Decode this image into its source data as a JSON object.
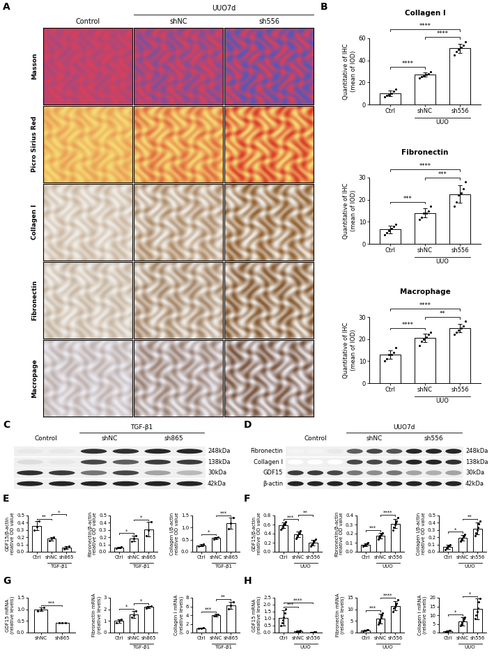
{
  "panels": [
    "A",
    "B",
    "C",
    "D",
    "E",
    "F",
    "G",
    "H"
  ],
  "histology": {
    "panel": "A",
    "columns": [
      "Control",
      "shNC",
      "sh556"
    ],
    "group": {
      "label": "UUO7d",
      "from": 1,
      "to": 2
    },
    "rows": [
      "Masson",
      "Picro Sirius Red",
      "Collagen I",
      "Fibronectin",
      "Macropage"
    ]
  },
  "blots": {
    "panels": [
      {
        "panel": "C",
        "lanes": 6,
        "columns": [
          {
            "label": "Control",
            "from": 0,
            "to": 1
          },
          {
            "label": "shNC",
            "from": 2,
            "to": 3
          },
          {
            "label": "sh865",
            "from": 4,
            "to": 5
          }
        ],
        "group": {
          "label": "TGF-β1",
          "from": 2,
          "to": 5
        },
        "kda": [
          "248kDa",
          "138kDa",
          "30kDa",
          "42kDa"
        ],
        "intensity": [
          [
            0.1,
            0.1,
            0.9,
            0.9,
            0.95,
            0.95
          ],
          [
            0.15,
            0.1,
            0.8,
            0.7,
            0.85,
            0.85
          ],
          [
            0.9,
            0.85,
            0.6,
            0.8,
            0.4,
            0.3
          ],
          [
            0.95,
            0.95,
            0.95,
            0.95,
            0.95,
            0.95
          ]
        ]
      },
      {
        "panel": "D",
        "lanes": 9,
        "columns": [
          {
            "label": "Control",
            "from": 0,
            "to": 2
          },
          {
            "label": "shNC",
            "from": 3,
            "to": 5
          },
          {
            "label": "sh556",
            "from": 6,
            "to": 8
          }
        ],
        "group": {
          "label": "UUO7d",
          "from": 3,
          "to": 8
        },
        "row_names": [
          "Fibronectin",
          "Collagen I",
          "GDF15",
          "β-actin"
        ],
        "kda": [
          "248kDa",
          "138kDa",
          "30kDa",
          "42kDa"
        ],
        "intensity": [
          [
            0.05,
            0.05,
            0.1,
            0.7,
            0.8,
            0.75,
            0.95,
            0.95,
            0.95
          ],
          [
            0.0,
            0.0,
            0.0,
            0.8,
            0.8,
            0.8,
            0.95,
            0.95,
            0.9
          ],
          [
            0.85,
            0.85,
            0.8,
            0.6,
            0.5,
            0.6,
            0.4,
            0.35,
            0.4
          ],
          [
            0.95,
            0.95,
            0.95,
            0.95,
            0.95,
            0.95,
            0.95,
            0.95,
            0.95
          ]
        ]
      }
    ]
  },
  "chart_data": [
    {
      "type": "bar",
      "panel": "B",
      "title": "Collagen I",
      "y_label": "Quantitative of IHC\n(mean of IOD)",
      "categories": [
        "Ctrl",
        "shNC",
        "sh556"
      ],
      "values": [
        10,
        27,
        51
      ],
      "errors": [
        2.5,
        2,
        4
      ],
      "points": [
        [
          7,
          8,
          9,
          10,
          12,
          14
        ],
        [
          24,
          25,
          26,
          27,
          28,
          30
        ],
        [
          45,
          48,
          50,
          52,
          54,
          57
        ]
      ],
      "group": {
        "label": "UUO",
        "from": 1,
        "to": 2
      },
      "color": "#ffffff",
      "ylim": [
        0,
        60
      ],
      "yticks": [
        0,
        20,
        40,
        60
      ],
      "significance": [
        {
          "from": 0,
          "to": 1,
          "label": "****"
        },
        {
          "from": 1,
          "to": 2,
          "label": "****"
        },
        {
          "from": 0,
          "to": 2,
          "label": "****"
        }
      ]
    },
    {
      "type": "bar",
      "panel": "B",
      "title": "Fibronectin",
      "y_label": "Quantitative of IHC\n(mean of IOD)",
      "categories": [
        "Ctrl",
        "shNC",
        "sh556"
      ],
      "values": [
        6.5,
        14,
        22.5
      ],
      "errors": [
        1.8,
        2,
        4
      ],
      "points": [
        [
          4,
          5,
          6,
          7,
          8,
          9
        ],
        [
          11,
          12,
          14,
          14,
          15,
          17
        ],
        [
          17,
          19,
          22,
          23,
          25,
          28
        ]
      ],
      "group": {
        "label": "UUO",
        "from": 1,
        "to": 2
      },
      "color": "#ffffff",
      "ylim": [
        0,
        30
      ],
      "yticks": [
        0,
        10,
        20,
        30
      ],
      "significance": [
        {
          "from": 0,
          "to": 1,
          "label": "***"
        },
        {
          "from": 1,
          "to": 2,
          "label": "***"
        },
        {
          "from": 0,
          "to": 2,
          "label": "****"
        }
      ]
    },
    {
      "type": "bar",
      "panel": "B",
      "title": "Macrophage",
      "y_label": "Quantitative of IHC\n(mean of IOD)",
      "categories": [
        "Ctrl",
        "shNC",
        "sh556"
      ],
      "values": [
        13,
        20.5,
        25
      ],
      "errors": [
        2,
        2,
        2
      ],
      "points": [
        [
          10,
          11,
          13,
          13,
          14,
          16
        ],
        [
          17,
          19,
          20,
          21,
          22,
          23
        ],
        [
          22,
          23,
          24,
          25,
          26,
          28
        ]
      ],
      "group": {
        "label": "UUO",
        "from": 1,
        "to": 2
      },
      "color": "#ffffff",
      "ylim": [
        0,
        30
      ],
      "yticks": [
        0,
        10,
        20,
        30
      ],
      "significance": [
        {
          "from": 0,
          "to": 1,
          "label": "****"
        },
        {
          "from": 1,
          "to": 2,
          "label": "**"
        },
        {
          "from": 0,
          "to": 2,
          "label": "****"
        }
      ]
    },
    {
      "type": "bar",
      "panel": "E",
      "y_label": "GDF15/β-actin\nrelative OD value",
      "categories": [
        "Ctrl",
        "shNC",
        "sh865"
      ],
      "values": [
        0.36,
        0.18,
        0.06
      ],
      "errors": [
        0.06,
        0.025,
        0.02
      ],
      "points": [
        [
          0.3,
          0.35,
          0.42
        ],
        [
          0.15,
          0.18,
          0.2
        ],
        [
          0.04,
          0.06,
          0.08
        ]
      ],
      "group": {
        "label": "TGF-β1",
        "from": 1,
        "to": 2
      },
      "color": "#ffffff",
      "ylim": [
        0.0,
        0.5
      ],
      "yticks": [
        0.0,
        0.1,
        0.2,
        0.3,
        0.4,
        0.5
      ],
      "significance": [
        {
          "from": 0,
          "to": 1,
          "label": "**"
        },
        {
          "from": 1,
          "to": 2,
          "label": "*"
        }
      ]
    },
    {
      "type": "bar",
      "panel": "E",
      "y_label": "Fibronectin/β-actin\nrelative OD value",
      "categories": [
        "Ctrl",
        "shNC",
        "sh865"
      ],
      "values": [
        0.06,
        0.18,
        0.31
      ],
      "errors": [
        0.01,
        0.04,
        0.1
      ],
      "points": [
        [
          0.05,
          0.06,
          0.07
        ],
        [
          0.14,
          0.18,
          0.22
        ],
        [
          0.22,
          0.3,
          0.41
        ]
      ],
      "group": {
        "label": "TGF-β1",
        "from": 1,
        "to": 2
      },
      "color": "#ffffff",
      "ylim": [
        0.0,
        0.5
      ],
      "yticks": [
        0.0,
        0.1,
        0.2,
        0.3,
        0.4,
        0.5
      ],
      "significance": [
        {
          "from": 0,
          "to": 1,
          "label": "*"
        },
        {
          "from": 1,
          "to": 2,
          "label": "*"
        }
      ]
    },
    {
      "type": "bar",
      "panel": "E",
      "y_label": "Collagen I/β-actin\nrelative OD value",
      "categories": [
        "Ctrl",
        "shNC",
        "sh865"
      ],
      "values": [
        0.27,
        0.57,
        1.18
      ],
      "errors": [
        0.05,
        0.05,
        0.22
      ],
      "points": [
        [
          0.22,
          0.27,
          0.32
        ],
        [
          0.52,
          0.57,
          0.62
        ],
        [
          0.95,
          1.18,
          1.4
        ]
      ],
      "group": {
        "label": "TGF-β1",
        "from": 1,
        "to": 2
      },
      "color": "#ffffff",
      "ylim": [
        0.0,
        1.5
      ],
      "yticks": [
        0.0,
        0.5,
        1.0,
        1.5
      ],
      "significance": [
        {
          "from": 0,
          "to": 1,
          "label": "*"
        },
        {
          "from": 1,
          "to": 2,
          "label": "***"
        }
      ]
    },
    {
      "type": "bar",
      "panel": "F",
      "y_label": "GDF15/β-actin\nrelative OD value",
      "categories": [
        "Ctrl",
        "shNC",
        "sh556"
      ],
      "values": [
        0.58,
        0.38,
        0.2
      ],
      "errors": [
        0.06,
        0.06,
        0.06
      ],
      "points": [
        [
          0.5,
          0.53,
          0.57,
          0.6,
          0.62,
          0.66
        ],
        [
          0.3,
          0.33,
          0.37,
          0.4,
          0.42,
          0.46
        ],
        [
          0.12,
          0.15,
          0.19,
          0.22,
          0.24,
          0.28
        ]
      ],
      "group": {
        "label": "UUO",
        "from": 1,
        "to": 2
      },
      "color": "#ffffff",
      "ylim": [
        0.0,
        0.8
      ],
      "yticks": [
        0.0,
        0.2,
        0.4,
        0.6,
        0.8
      ],
      "significance": [
        {
          "from": 0,
          "to": 1,
          "label": "***"
        },
        {
          "from": 1,
          "to": 2,
          "label": "**"
        }
      ]
    },
    {
      "type": "bar",
      "panel": "F",
      "y_label": "Fibronectin/β-actin\nrelative OD value",
      "categories": [
        "Ctrl",
        "shNC",
        "sh556"
      ],
      "values": [
        0.08,
        0.18,
        0.31
      ],
      "errors": [
        0.015,
        0.03,
        0.05
      ],
      "points": [
        [
          0.06,
          0.07,
          0.08,
          0.08,
          0.09,
          0.1
        ],
        [
          0.14,
          0.16,
          0.18,
          0.19,
          0.2,
          0.21
        ],
        [
          0.24,
          0.27,
          0.3,
          0.32,
          0.34,
          0.38
        ]
      ],
      "group": {
        "label": "UUO",
        "from": 1,
        "to": 2
      },
      "color": "#ffffff",
      "ylim": [
        0.0,
        0.4
      ],
      "yticks": [
        0.0,
        0.1,
        0.2,
        0.3,
        0.4
      ],
      "significance": [
        {
          "from": 0,
          "to": 1,
          "label": "***"
        },
        {
          "from": 1,
          "to": 2,
          "label": "****"
        }
      ]
    },
    {
      "type": "bar",
      "panel": "F",
      "y_label": "Collagen I/β-actin\nrelative OD value",
      "categories": [
        "Ctrl",
        "shNC",
        "sh556"
      ],
      "values": [
        0.07,
        0.19,
        0.32
      ],
      "errors": [
        0.03,
        0.04,
        0.08
      ],
      "points": [
        [
          0.03,
          0.05,
          0.07,
          0.08,
          0.09,
          0.1
        ],
        [
          0.14,
          0.16,
          0.18,
          0.2,
          0.22,
          0.24
        ],
        [
          0.22,
          0.26,
          0.3,
          0.34,
          0.38,
          0.42
        ]
      ],
      "group": {
        "label": "UUO",
        "from": 1,
        "to": 2
      },
      "color": "#ffffff",
      "ylim": [
        0.0,
        0.5
      ],
      "yticks": [
        0.0,
        0.1,
        0.2,
        0.3,
        0.4,
        0.5
      ],
      "significance": [
        {
          "from": 0,
          "to": 1,
          "label": "*"
        },
        {
          "from": 1,
          "to": 2,
          "label": "**"
        }
      ]
    },
    {
      "type": "bar",
      "panel": "G",
      "y_label": "GDF15 mRNA\n(relative levels)",
      "categories": [
        "shNC",
        "sh865"
      ],
      "values": [
        1.0,
        0.42
      ],
      "errors": [
        0.08,
        0.01
      ],
      "points": [
        [
          0.92,
          1.0,
          1.08
        ],
        [
          0.41,
          0.42,
          0.43
        ]
      ],
      "color": "#ffffff",
      "ylim": [
        0.0,
        1.5
      ],
      "yticks": [
        0.0,
        0.5,
        1.0,
        1.5
      ],
      "significance": [
        {
          "from": 0,
          "to": 1,
          "label": "***"
        }
      ]
    },
    {
      "type": "bar",
      "panel": "G",
      "y_label": "Fibronectin mRNA\n(relative levels)",
      "categories": [
        "Ctrl",
        "shNC",
        "sh865"
      ],
      "values": [
        1.0,
        1.55,
        2.2
      ],
      "errors": [
        0.15,
        0.3,
        0.1
      ],
      "points": [
        [
          0.85,
          1.0,
          1.15
        ],
        [
          1.3,
          1.5,
          1.85
        ],
        [
          2.1,
          2.2,
          2.3
        ]
      ],
      "group": {
        "label": "TGF-β1",
        "from": 1,
        "to": 2
      },
      "color": "#ffffff",
      "ylim": [
        0,
        3
      ],
      "yticks": [
        0,
        1,
        2,
        3
      ],
      "significance": [
        {
          "from": 0,
          "to": 1,
          "label": "*"
        },
        {
          "from": 1,
          "to": 2,
          "label": "*"
        }
      ]
    },
    {
      "type": "bar",
      "panel": "G",
      "y_label": "Collagen I mRNA\n(relative levels)",
      "categories": [
        "Ctrl",
        "shNC",
        "sh865"
      ],
      "values": [
        1.0,
        4.0,
        6.3
      ],
      "errors": [
        0.1,
        0.3,
        0.8
      ],
      "points": [
        [
          0.9,
          1.0,
          1.1
        ],
        [
          3.8,
          4.0,
          4.2
        ],
        [
          5.5,
          6.3,
          7.1
        ]
      ],
      "group": {
        "label": "TGF-β1",
        "from": 1,
        "to": 2
      },
      "color": "#ffffff",
      "ylim": [
        0,
        8
      ],
      "yticks": [
        0,
        2,
        4,
        6,
        8
      ],
      "significance": [
        {
          "from": 0,
          "to": 1,
          "label": "***"
        },
        {
          "from": 1,
          "to": 2,
          "label": "**"
        }
      ]
    },
    {
      "type": "bar",
      "panel": "H",
      "y_label": "GDF15 mRNA\n(relative levels)",
      "categories": [
        "Ctrl",
        "shNC",
        "sh556"
      ],
      "values": [
        1.05,
        0.1,
        0.02
      ],
      "errors": [
        0.55,
        0.04,
        0.01
      ],
      "points": [
        [
          0.5,
          0.7,
          0.9,
          1.1,
          1.4,
          1.7
        ],
        [
          0.05,
          0.08,
          0.1,
          0.1,
          0.12,
          0.15
        ],
        [
          0.01,
          0.01,
          0.02,
          0.02,
          0.03,
          0.03
        ]
      ],
      "group": {
        "label": "UUO",
        "from": 1,
        "to": 2
      },
      "color": "#ffffff",
      "ylim": [
        0.0,
        2.5
      ],
      "yticks": [
        0.0,
        0.5,
        1.0,
        1.5,
        2.0,
        2.5
      ],
      "significance": [
        {
          "from": 0,
          "to": 1,
          "label": "***"
        },
        {
          "from": 0,
          "to": 2,
          "label": "****"
        }
      ]
    },
    {
      "type": "bar",
      "panel": "H",
      "y_label": "Fibronectin mRNA\n(relative levels)",
      "categories": [
        "Ctrl",
        "shNC",
        "sh556"
      ],
      "values": [
        1.0,
        6.0,
        11.5
      ],
      "errors": [
        0.2,
        2,
        2
      ],
      "points": [
        [
          0.7,
          0.9,
          1.0,
          1.0,
          1.1,
          1.3
        ],
        [
          3.5,
          4.5,
          5.5,
          6.5,
          7.5,
          8.5
        ],
        [
          9,
          10.5,
          11,
          12,
          12.5,
          14
        ]
      ],
      "group": {
        "label": "UUO",
        "from": 1,
        "to": 2
      },
      "color": "#ffffff",
      "ylim": [
        0,
        15
      ],
      "yticks": [
        0,
        5,
        10,
        15
      ],
      "significance": [
        {
          "from": 0,
          "to": 1,
          "label": "***"
        },
        {
          "from": 1,
          "to": 2,
          "label": "****"
        }
      ]
    },
    {
      "type": "bar",
      "panel": "H",
      "y_label": "Collagen I mRNA\n(relative levels)",
      "categories": [
        "Ctrl",
        "shNC",
        "sh556"
      ],
      "values": [
        1.0,
        6.5,
        13.5
      ],
      "errors": [
        0.3,
        2.5,
        6
      ],
      "points": [
        [
          0.6,
          0.8,
          1.0,
          1.0,
          1.2,
          1.4
        ],
        [
          4,
          5,
          6,
          7,
          8,
          9
        ],
        [
          8,
          10,
          12,
          14,
          17.5,
          19.5
        ]
      ],
      "group": {
        "label": "UUO",
        "from": 1,
        "to": 2
      },
      "color": "#ffffff",
      "ylim": [
        0,
        20
      ],
      "yticks": [
        0,
        5,
        10,
        15,
        20
      ],
      "significance": [
        {
          "from": 0,
          "to": 1,
          "label": "*"
        },
        {
          "from": 1,
          "to": 2,
          "label": "*"
        }
      ]
    }
  ]
}
